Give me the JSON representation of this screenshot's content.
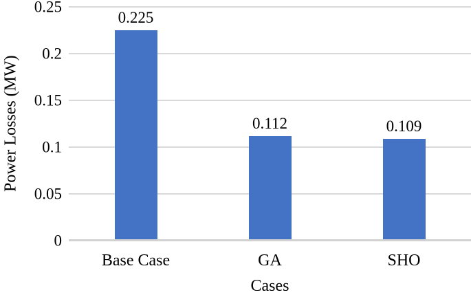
{
  "chart_data": {
    "type": "bar",
    "title": "",
    "xlabel": "Cases",
    "ylabel": "Power Losses (MW)",
    "categories": [
      "Base Case",
      "GA",
      "SHO"
    ],
    "values": [
      0.225,
      0.112,
      0.109
    ],
    "data_labels": [
      "0.225",
      "0.112",
      "0.109"
    ],
    "yticks": [
      "0",
      "0.05",
      "0.1",
      "0.15",
      "0.2",
      "0.25"
    ],
    "ylim": [
      0,
      0.25
    ],
    "grid": "horizontal-gridlines-on",
    "legend": "none",
    "colors": {
      "bar": "#4472C4",
      "gridline": "#D9D9D9",
      "axis_line": "#D2D2D2",
      "text": "#000000",
      "background": "#FFFFFF"
    }
  }
}
